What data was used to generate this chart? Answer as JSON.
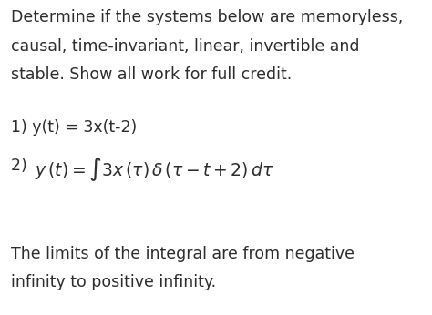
{
  "background_color": "#ffffff",
  "text_color": "#2d2d2d",
  "line1": "Determine if the systems below are memoryless,",
  "line2": "causal, time-invariant, linear, invertible and",
  "line3": "stable. Show all work for full credit.",
  "item1_plain": "1) y(t) = 3x(t-2)",
  "item2_label": "2) ",
  "item2_math": "$y\\,(t) = \\int 3x\\,(\\tau)\\,\\delta\\,(\\tau - t + 2)\\,d\\tau$",
  "footer1": "The limits of the integral are from negative",
  "footer2": "infinity to positive infinity.",
  "header_fontsize": 12.5,
  "plain_fontsize": 12.5,
  "math_fontsize": 13.5,
  "footer_fontsize": 12.5
}
